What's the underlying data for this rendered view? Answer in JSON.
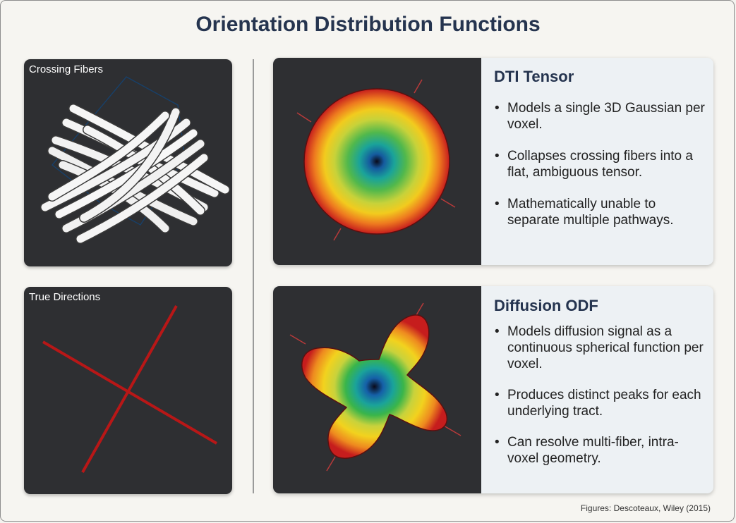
{
  "title": "Orientation Distribution Functions",
  "panels": {
    "crossing_fibers": {
      "label": "Crossing Fibers"
    },
    "true_directions": {
      "label": "True Directions"
    }
  },
  "cards": [
    {
      "heading": "DTI Tensor",
      "bullets": [
        "Models a single 3D Gaussian per voxel.",
        "Collapses crossing fibers into a flat, ambiguous tensor.",
        "Mathematically unable to separate multiple pathways."
      ]
    },
    {
      "heading": "Diffusion ODF",
      "bullets": [
        "Models diffusion signal as a continuous spherical function per voxel.",
        "Produces distinct peaks for each underlying tract.",
        "Can resolve multi-fiber, intra-voxel geometry."
      ]
    }
  ],
  "source": "Figures: Descoteaux, Wiley (2015)",
  "colors": {
    "title": "#25344f",
    "panel_bg": "#2e2f32",
    "card_bg": "#edf1f4",
    "direction_line": "#b81717",
    "fiber": "#f4f4f4"
  }
}
